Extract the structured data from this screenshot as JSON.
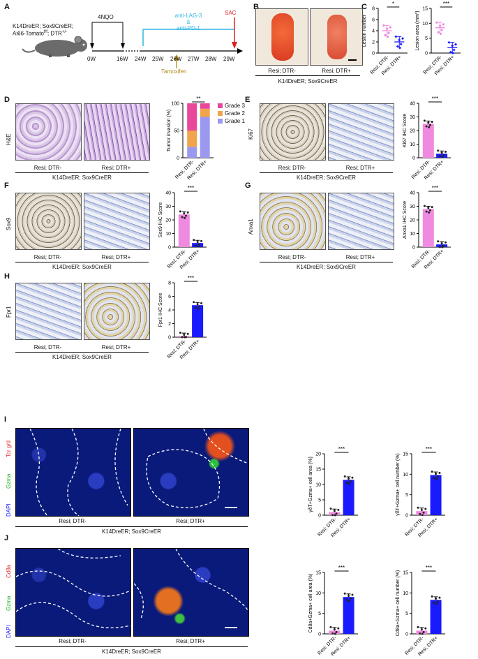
{
  "panels": {
    "A": "A",
    "B": "B",
    "C": "C",
    "D": "D",
    "E": "E",
    "F": "F",
    "G": "G",
    "H": "H",
    "I": "I",
    "J": "J"
  },
  "timeline": {
    "mouse_line1": "K14DreER; Sox9CreER;",
    "mouse_line2": "Ai66-Tomato",
    "mouse_sup1": "f/f",
    "mouse_line2b": "; DTR",
    "mouse_sup2": "+/-",
    "treatment": "4NQO",
    "immuno_line1": "anti-LAG-3",
    "immuno_line2": "&",
    "immuno_line3": "anti-PD-1",
    "sac": "SAC",
    "tamoxifen": "Tamoxifen",
    "ticks": [
      "0W",
      "16W",
      "24W",
      "25W",
      "26W",
      "27W",
      "28W",
      "29W"
    ]
  },
  "groups": {
    "neg": "Resi; DTR-",
    "pos": "Resi; DTR+"
  },
  "genotype": "K14DreER; Sox9CreER",
  "stain": {
    "D": "H&E",
    "E": "Ki67",
    "F": "Sox9",
    "G": "Anxa1",
    "H": "Fpr1"
  },
  "fluor": {
    "I": {
      "c1": "Tcr g/d",
      "c2": "Gzma",
      "c3": "DAPI"
    },
    "J": {
      "c1": "Cd8a",
      "c2": "Gzma",
      "c3": "DAPI"
    }
  },
  "colors": {
    "neg": "#f08ae0",
    "pos": "#1a1aff",
    "grade3": "#e8479a",
    "grade2": "#f0a44c",
    "grade1": "#9b98f0",
    "cyan": "#33b5e5",
    "red": "#e02020",
    "gold": "#b08a10"
  },
  "chart_data": [
    {
      "id": "C1",
      "type": "scatter",
      "ylabel": "Lesion number",
      "ylim": [
        0,
        8
      ],
      "yticks": [
        0,
        2,
        4,
        6,
        8
      ],
      "categories": [
        "Resi; DTR-",
        "Resi; DTR+"
      ],
      "means": [
        4,
        2
      ],
      "sig": "*"
    },
    {
      "id": "C2",
      "type": "scatter",
      "ylabel": "Lesion area (mm²)",
      "ylim": [
        0,
        15
      ],
      "yticks": [
        0,
        5,
        10,
        15
      ],
      "categories": [
        "Resi; DTR-",
        "Resi; DTR+"
      ],
      "means": [
        8.5,
        1.8
      ],
      "sig": "***"
    },
    {
      "id": "D",
      "type": "bar",
      "stacked": true,
      "ylabel": "Tumor invasion (%)",
      "ylim": [
        0,
        100
      ],
      "yticks": [
        0,
        50,
        100
      ],
      "categories": [
        "Resi; DTR-",
        "Resi; DTR+"
      ],
      "series": [
        {
          "name": "Grade 1",
          "values": [
            20,
            75
          ]
        },
        {
          "name": "Grade 2",
          "values": [
            30,
            15
          ]
        },
        {
          "name": "Grade 3",
          "values": [
            50,
            10
          ]
        }
      ],
      "sig": "**"
    },
    {
      "id": "E",
      "type": "bar",
      "ylabel": "Ki67 IHC Score",
      "ylim": [
        0,
        40
      ],
      "yticks": [
        0,
        10,
        20,
        30,
        40
      ],
      "categories": [
        "Resi; DTR-",
        "Resi; DTR+"
      ],
      "values": [
        25,
        3
      ],
      "sig": "***"
    },
    {
      "id": "F",
      "type": "bar",
      "ylabel": "Sox9 IHC Score",
      "ylim": [
        0,
        40
      ],
      "yticks": [
        0,
        10,
        20,
        30,
        40
      ],
      "categories": [
        "Resi; DTR-",
        "Resi; DTR+"
      ],
      "values": [
        24,
        3
      ],
      "sig": "***"
    },
    {
      "id": "G",
      "type": "bar",
      "ylabel": "Anxa1 IHC Score",
      "ylim": [
        0,
        40
      ],
      "yticks": [
        0,
        10,
        20,
        30,
        40
      ],
      "categories": [
        "Resi; DTR-",
        "Resi; DTR+"
      ],
      "values": [
        28,
        2
      ],
      "sig": "***"
    },
    {
      "id": "H",
      "type": "bar",
      "ylabel": "Fpr1 IHC Score",
      "ylim": [
        0,
        8
      ],
      "yticks": [
        0,
        2,
        4,
        6,
        8
      ],
      "categories": [
        "Resi; DTR-",
        "Resi; DTR+"
      ],
      "values": [
        0.2,
        4.7
      ],
      "sig": "***"
    },
    {
      "id": "I1",
      "type": "bar",
      "ylabel": "γδT+Gzma+ cell area (%)",
      "ylim": [
        0,
        20
      ],
      "yticks": [
        0,
        5,
        10,
        15,
        20
      ],
      "categories": [
        "Resi; DTR-",
        "Resi; DTR+"
      ],
      "values": [
        1,
        11.5
      ],
      "sig": "***"
    },
    {
      "id": "I2",
      "type": "bar",
      "ylabel": "γδT+Gzma+ cell number (%)",
      "ylim": [
        0,
        15
      ],
      "yticks": [
        0,
        5,
        10,
        15
      ],
      "categories": [
        "Resi; DTR-",
        "Resi; DTR+"
      ],
      "values": [
        1,
        9.8
      ],
      "sig": "***"
    },
    {
      "id": "J1",
      "type": "bar",
      "ylabel": "Cd8a+Gzma+ cell area (%)",
      "ylim": [
        0,
        15
      ],
      "yticks": [
        0,
        5,
        10,
        15
      ],
      "categories": [
        "Resi; DTR-",
        "Resi; DTR+"
      ],
      "values": [
        0.8,
        9
      ],
      "sig": "***"
    },
    {
      "id": "J2",
      "type": "bar",
      "ylabel": "Cd8a+Gzma+ cell number (%)",
      "ylim": [
        0,
        15
      ],
      "yticks": [
        0,
        5,
        10,
        15
      ],
      "categories": [
        "Resi; DTR-",
        "Resi; DTR+"
      ],
      "values": [
        0.8,
        8.3
      ],
      "sig": "***"
    }
  ]
}
